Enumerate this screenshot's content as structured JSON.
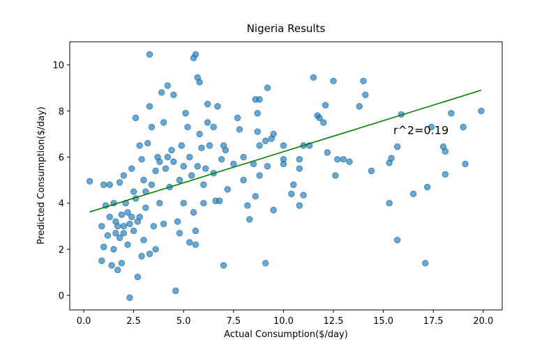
{
  "chart_data": {
    "type": "scatter",
    "title": "Nigeria Results",
    "xlabel": "Actual Consumption($/day)",
    "ylabel": "Predicted Consumption($/day)",
    "xlim": [
      -0.7,
      20.95
    ],
    "ylim": [
      -0.63,
      11.0
    ],
    "xticks": [
      {
        "value": 0,
        "label": "0.0"
      },
      {
        "value": 2.5,
        "label": "2.5"
      },
      {
        "value": 5,
        "label": "5.0"
      },
      {
        "value": 7.5,
        "label": "7.5"
      },
      {
        "value": 10,
        "label": "10.0"
      },
      {
        "value": 12.5,
        "label": "12.5"
      },
      {
        "value": 15,
        "label": "15.0"
      },
      {
        "value": 17.5,
        "label": "17.5"
      },
      {
        "value": 20,
        "label": "20.0"
      }
    ],
    "yticks": [
      0,
      2,
      4,
      6,
      8,
      10
    ],
    "series": [
      {
        "color": "#1f77b4",
        "x": [
          0.3,
          3.3,
          5.6,
          5.5,
          5.7,
          5.8,
          11.5,
          12.5,
          14.0,
          14.1,
          13.8,
          19.9,
          18.4,
          19.0,
          17.4,
          15.9,
          15.7,
          18.0,
          18.1,
          15.4,
          15.3,
          14.4,
          19.1,
          18.1,
          16.5,
          17.2,
          15.3,
          15.7,
          17.1,
          12.6,
          12.7,
          13.0,
          13.3,
          12.1,
          11.8,
          11.7,
          12.0,
          12.2,
          11.3,
          11.0,
          10.8,
          10.8,
          11.0,
          10.8,
          10.5,
          10.4,
          10.0,
          10.0,
          10.0,
          9.5,
          9.4,
          9.1,
          9.2,
          8.6,
          8.8,
          8.7,
          8.7,
          8.8,
          8.5,
          8.6,
          8.8,
          9.2,
          9.5,
          9.1,
          8.2,
          8.3,
          8.0,
          8.0,
          7.8,
          7.7,
          7.5,
          7.2,
          7.1,
          7.0,
          6.9,
          7.0,
          6.8,
          6.7,
          6.6,
          6.5,
          6.5,
          6.3,
          6.1,
          6.0,
          6.0,
          6.2,
          6.2,
          5.9,
          5.8,
          5.7,
          5.6,
          5.6,
          5.5,
          5.4,
          5.3,
          5.2,
          5.1,
          5.0,
          4.9,
          4.8,
          4.7,
          4.6,
          4.5,
          4.4,
          4.3,
          4.2,
          4.1,
          4.0,
          3.9,
          3.8,
          3.7,
          3.6,
          3.5,
          3.4,
          3.3,
          3.2,
          3.1,
          3.0,
          2.9,
          2.8,
          2.7,
          2.7,
          2.6,
          2.5,
          2.4,
          2.3,
          2.3,
          2.2,
          2.1,
          2.0,
          2.0,
          1.9,
          1.9,
          1.8,
          1.8,
          1.7,
          1.6,
          1.5,
          1.5,
          1.4,
          1.3,
          1.3,
          1.2,
          1.1,
          1.0,
          1.0,
          0.9,
          0.9,
          2.5,
          2.2,
          2.0,
          1.7,
          2.8,
          3.1,
          2.6,
          3.4,
          3.8,
          4.2,
          4.5,
          5.0,
          3.0,
          2.4,
          1.6,
          3.6,
          4.0,
          4.8,
          5.3,
          3.3,
          2.9
        ],
        "values": [
          4.95,
          10.45,
          10.45,
          10.3,
          9.45,
          9.25,
          9.45,
          9.3,
          9.3,
          8.7,
          8.2,
          8.0,
          7.9,
          7.3,
          7.3,
          7.85,
          6.45,
          6.45,
          6.25,
          5.95,
          5.75,
          5.4,
          5.7,
          5.25,
          4.4,
          4.7,
          4.0,
          2.4,
          1.4,
          5.2,
          5.9,
          5.9,
          5.8,
          8.25,
          7.7,
          7.8,
          7.5,
          6.2,
          6.5,
          6.5,
          5.9,
          5.5,
          4.35,
          3.9,
          4.8,
          4.4,
          5.7,
          5.9,
          6.5,
          7.0,
          6.8,
          6.7,
          9.0,
          8.5,
          8.5,
          7.9,
          7.1,
          6.5,
          5.7,
          4.3,
          5.2,
          5.6,
          3.7,
          1.4,
          3.9,
          3.3,
          5.0,
          6.0,
          7.2,
          7.7,
          5.7,
          4.6,
          6.3,
          6.5,
          5.9,
          1.3,
          4.1,
          8.2,
          4.1,
          7.3,
          5.3,
          6.5,
          5.5,
          4.8,
          4.0,
          7.5,
          8.3,
          6.4,
          7.0,
          5.6,
          2.8,
          2.2,
          3.6,
          5.2,
          6.0,
          7.3,
          7.9,
          4.0,
          6.5,
          5.0,
          3.2,
          0.2,
          8.7,
          6.3,
          4.7,
          9.1,
          5.5,
          7.5,
          8.8,
          4.0,
          6.0,
          5.4,
          3.0,
          7.3,
          8.2,
          6.6,
          4.5,
          2.4,
          5.9,
          6.5,
          3.2,
          0.8,
          7.7,
          4.5,
          5.5,
          -0.1,
          3.1,
          2.2,
          4.0,
          3.0,
          5.2,
          1.4,
          3.5,
          2.5,
          4.9,
          1.1,
          3.2,
          4.0,
          2.0,
          1.3,
          3.4,
          4.8,
          2.6,
          3.9,
          2.1,
          4.8,
          1.5,
          3.0,
          2.8,
          3.6,
          2.7,
          3.0,
          3.4,
          3.8,
          4.2,
          4.8,
          5.8,
          6.0,
          5.8,
          5.6,
          5.0,
          3.4,
          2.7,
          2.0,
          3.1,
          2.7,
          2.3,
          1.8,
          1.7
        ]
      }
    ],
    "fit_line": {
      "color": "#008000",
      "x": [
        0.3,
        19.9
      ],
      "y": [
        3.62,
        8.9
      ]
    },
    "annotation": {
      "text": "r^2=0.19",
      "x": 15.5,
      "y": 7.0
    }
  }
}
